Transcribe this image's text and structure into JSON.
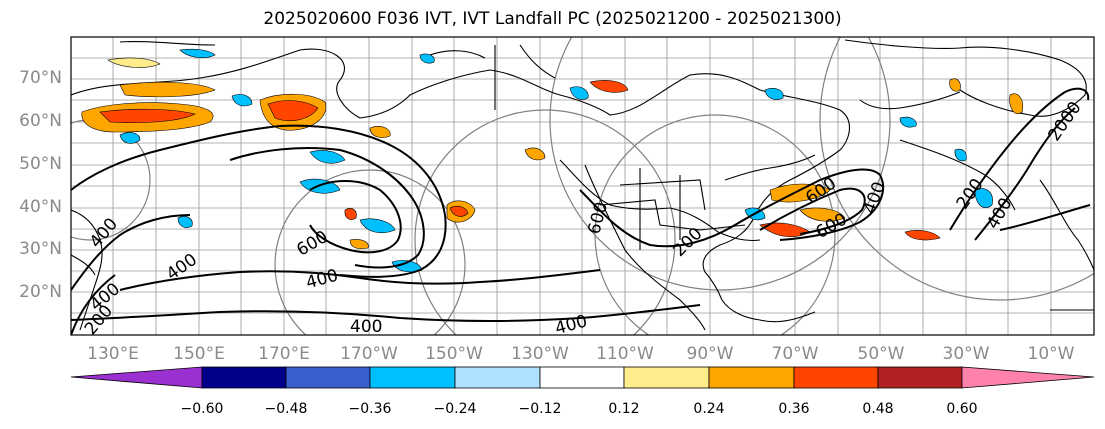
{
  "title": "2025020600 F036 IVT, IVT Landfall PC (2025021200 - 2025021300)",
  "lat_labels": [
    "70°N",
    "60°N",
    "50°N",
    "40°N",
    "30°N",
    "20°N"
  ],
  "lon_labels": [
    "130°E",
    "150°E",
    "170°E",
    "170°W",
    "150°W",
    "130°W",
    "110°W",
    "90°W",
    "70°W",
    "50°W",
    "30°W",
    "10°W"
  ],
  "contour_labels": [
    "400",
    "400",
    "400",
    "600",
    "400",
    "400",
    "400",
    "600",
    "200",
    "600",
    "600",
    "400",
    "200",
    "400",
    "2000",
    "200"
  ],
  "colorbar": {
    "ticks": [
      "−0.60",
      "−0.48",
      "−0.36",
      "−0.24",
      "−0.12",
      "0.12",
      "0.24",
      "0.36",
      "0.48",
      "0.60"
    ],
    "colors": [
      "#9b30d0",
      "#00008b",
      "#3a5fcd",
      "#00bfff",
      "#b0e2ff",
      "#ffffff",
      "#ffec8b",
      "#ffa500",
      "#ff4500",
      "#b22222",
      "#ff82ab"
    ]
  }
}
